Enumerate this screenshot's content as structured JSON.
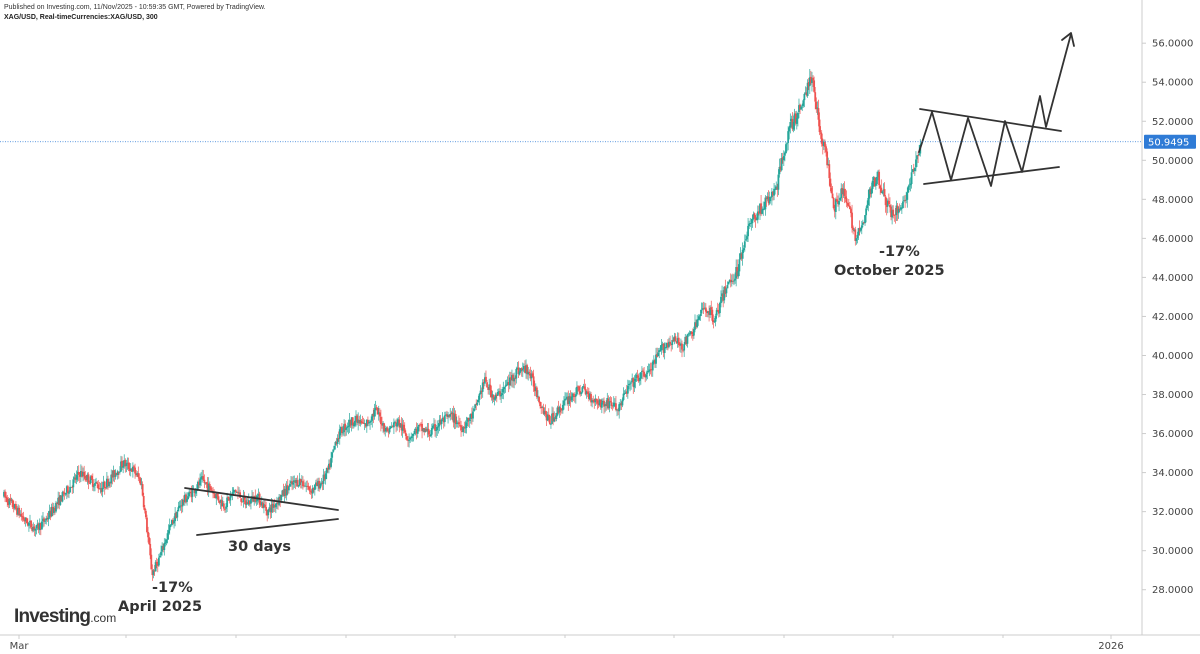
{
  "header": {
    "published": "Published on Investing.com, 11/Nov/2025 - 10:59:35 GMT, Powered by TradingView.",
    "symbol": "XAG/USD, Real-timeCurrencies:XAG/USD, 300"
  },
  "logo": {
    "brand": "Investing",
    "tld": ".com"
  },
  "colors": {
    "up": "#26a69a",
    "down": "#ef5350",
    "price_line": "#2f7bd6",
    "axis": "#cccccc",
    "annotation": "#333333"
  },
  "chart_data": {
    "type": "candlestick",
    "ylim": [
      26.5,
      57.7
    ],
    "y_ticks": [
      "28.0000",
      "30.0000",
      "32.0000",
      "34.0000",
      "36.0000",
      "38.0000",
      "40.0000",
      "42.0000",
      "44.0000",
      "46.0000",
      "48.0000",
      "50.0000",
      "52.0000",
      "54.0000",
      "56.0000"
    ],
    "x_ticks": [
      "Mar",
      "2026"
    ],
    "current_price": "50.9495",
    "price_path": [
      [
        0,
        32.8
      ],
      [
        3,
        32.2
      ],
      [
        6,
        31.5
      ],
      [
        9,
        31.1
      ],
      [
        12,
        31.7
      ],
      [
        15,
        32.5
      ],
      [
        18,
        33.2
      ],
      [
        21,
        34.0
      ],
      [
        24,
        33.6
      ],
      [
        27,
        33.2
      ],
      [
        30,
        33.8
      ],
      [
        33,
        34.5
      ],
      [
        36,
        34.1
      ],
      [
        38,
        33.5
      ],
      [
        40,
        30.5
      ],
      [
        41,
        28.8
      ],
      [
        43,
        29.6
      ],
      [
        46,
        31.2
      ],
      [
        49,
        32.4
      ],
      [
        52,
        33.0
      ],
      [
        55,
        33.6
      ],
      [
        58,
        33.0
      ],
      [
        61,
        32.3
      ],
      [
        64,
        33.1
      ],
      [
        67,
        32.4
      ],
      [
        70,
        32.8
      ],
      [
        73,
        32.0
      ],
      [
        76,
        32.6
      ],
      [
        79,
        33.3
      ],
      [
        82,
        33.6
      ],
      [
        85,
        33.1
      ],
      [
        88,
        33.5
      ],
      [
        90,
        34.2
      ],
      [
        92,
        35.7
      ],
      [
        94,
        36.3
      ],
      [
        97,
        36.7
      ],
      [
        100,
        36.4
      ],
      [
        103,
        37.2
      ],
      [
        106,
        36.1
      ],
      [
        109,
        36.6
      ],
      [
        112,
        35.8
      ],
      [
        115,
        36.3
      ],
      [
        118,
        36.0
      ],
      [
        121,
        36.6
      ],
      [
        124,
        36.9
      ],
      [
        127,
        36.3
      ],
      [
        130,
        37.0
      ],
      [
        133,
        38.7
      ],
      [
        136,
        37.8
      ],
      [
        139,
        38.4
      ],
      [
        142,
        39.2
      ],
      [
        145,
        39.3
      ],
      [
        147,
        38.4
      ],
      [
        149,
        37.4
      ],
      [
        151,
        36.6
      ],
      [
        154,
        37.3
      ],
      [
        157,
        37.9
      ],
      [
        160,
        38.3
      ],
      [
        163,
        37.8
      ],
      [
        166,
        37.5
      ],
      [
        168,
        37.6
      ],
      [
        170,
        37.2
      ],
      [
        173,
        38.4
      ],
      [
        176,
        38.9
      ],
      [
        179,
        39.2
      ],
      [
        182,
        40.3
      ],
      [
        185,
        40.8
      ],
      [
        188,
        40.5
      ],
      [
        191,
        41.3
      ],
      [
        194,
        42.5
      ],
      [
        197,
        41.9
      ],
      [
        200,
        43.5
      ],
      [
        203,
        44.3
      ],
      [
        206,
        46.5
      ],
      [
        209,
        47.4
      ],
      [
        212,
        48.0
      ],
      [
        214,
        48.6
      ],
      [
        216,
        50.5
      ],
      [
        218,
        51.8
      ],
      [
        220,
        52.4
      ],
      [
        222,
        53.5
      ],
      [
        224,
        54.3
      ],
      [
        226,
        51.5
      ],
      [
        228,
        50.0
      ],
      [
        230,
        47.6
      ],
      [
        232,
        48.5
      ],
      [
        234,
        47.5
      ],
      [
        236,
        46.0
      ],
      [
        238,
        46.7
      ],
      [
        240,
        48.5
      ],
      [
        242,
        49.3
      ],
      [
        244,
        48.0
      ],
      [
        246,
        47.2
      ],
      [
        248,
        47.5
      ],
      [
        250,
        48.2
      ],
      [
        252,
        49.5
      ],
      [
        254,
        50.9
      ]
    ],
    "annotations": {
      "april": {
        "pct": "-17%",
        "label": "April 2025"
      },
      "triangle": {
        "label": "30 days"
      },
      "october": {
        "pct": "-17%",
        "label": "October 2025"
      }
    }
  }
}
